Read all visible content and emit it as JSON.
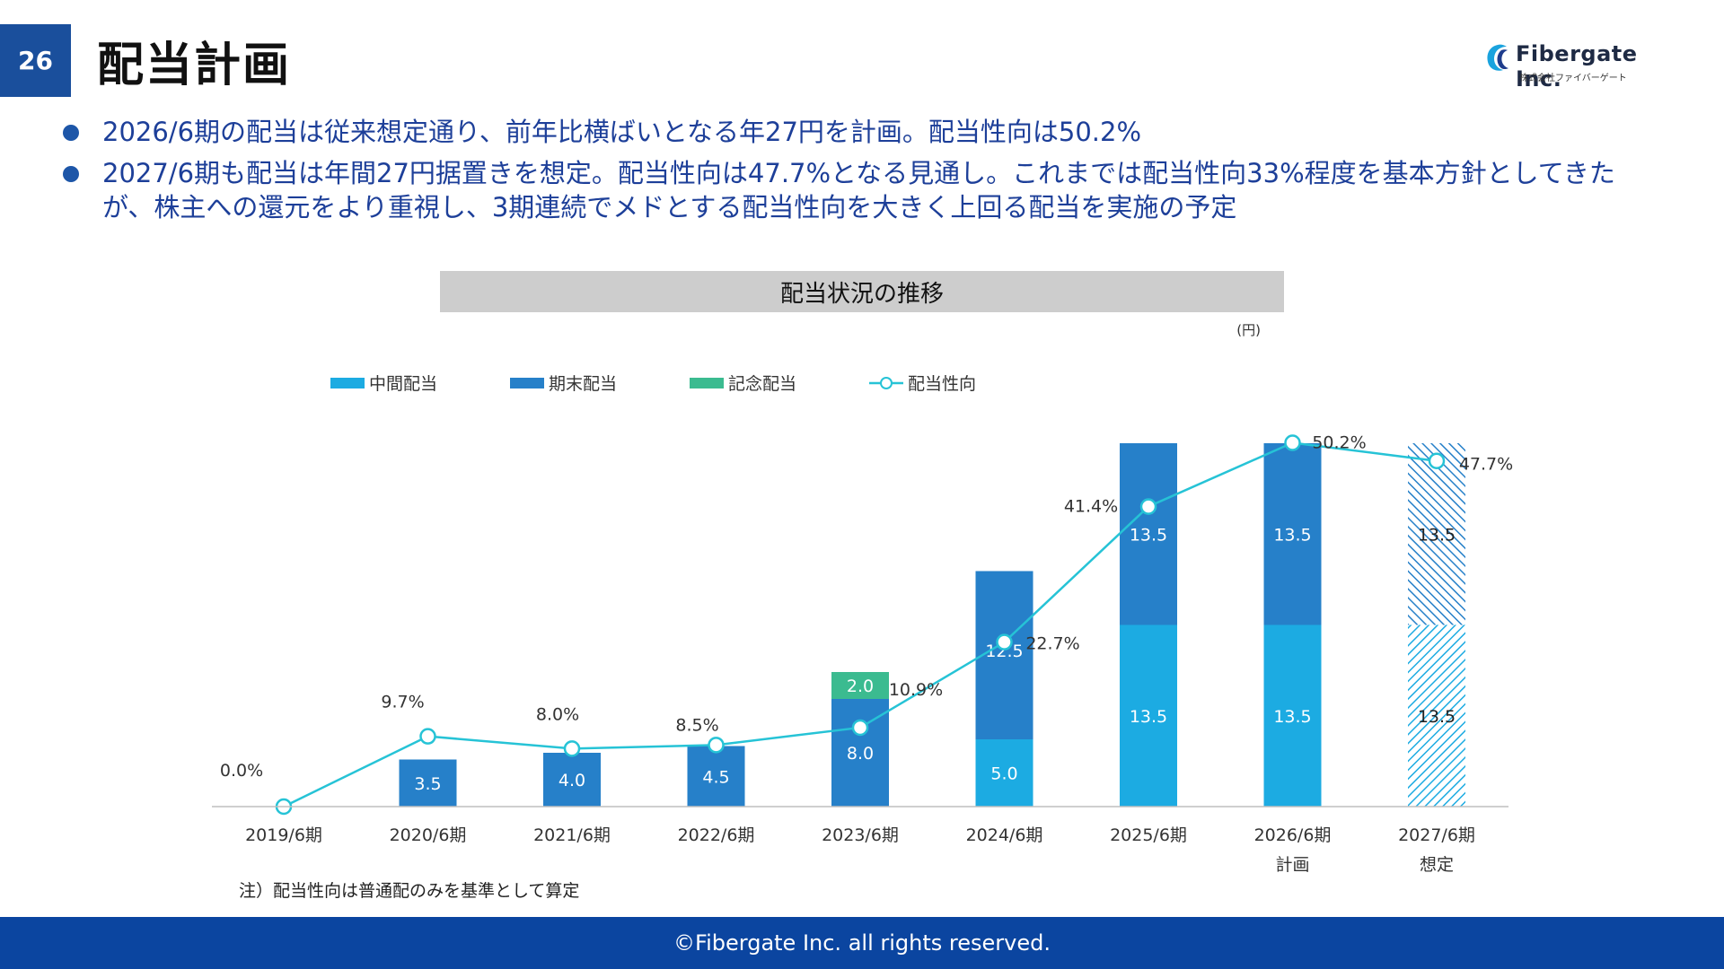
{
  "page": {
    "number": "26",
    "title": "配当計画",
    "logo_name": "Fibergate Inc.",
    "logo_sub": "株式会社ファイバーゲート",
    "bullets": [
      "2026/6期の配当は従来想定通り、前年比横ばいとなる年27円を計画。配当性向は50.2%",
      "2027/6期も配当は年間27円据置きを想定。配当性向は47.7%となる見通し。これまでは配当性向33%程度を基本方針としてきたが、株主への還元をより重視し、3期連続でメドとする配当性向を大きく上回る配当を実施の予定"
    ],
    "footer": "©Fibergate Inc. all rights reserved."
  },
  "chart_data": {
    "type": "bar",
    "title": "配当状況の推移",
    "unit": "(円)",
    "note": "注）配当性向は普通配のみを基準として算定",
    "categories": [
      "2019/6期",
      "2020/6期",
      "2021/6期",
      "2022/6期",
      "2023/6期",
      "2024/6期",
      "2025/6期",
      "2026/6期",
      "2027/6期"
    ],
    "category_sublabels": [
      "",
      "",
      "",
      "",
      "",
      "",
      "",
      "計画",
      "想定"
    ],
    "stacked": true,
    "ylim": [
      0,
      28
    ],
    "series": [
      {
        "name": "中間配当",
        "color": "#1cabe2",
        "values": [
          null,
          null,
          null,
          null,
          null,
          5.0,
          13.5,
          13.5,
          13.5
        ],
        "labels": [
          "",
          "",
          "",
          "",
          "",
          "5.0",
          "13.5",
          "13.5",
          "13.5"
        ]
      },
      {
        "name": "期末配当",
        "color": "#2680c9",
        "values": [
          null,
          3.5,
          4.0,
          4.5,
          8.0,
          12.5,
          13.5,
          13.5,
          13.5
        ],
        "labels": [
          "",
          "3.5",
          "4.0",
          "4.5",
          "8.0",
          "12.5",
          "13.5",
          "13.5",
          "13.5"
        ]
      },
      {
        "name": "記念配当",
        "color": "#3bbb90",
        "values": [
          null,
          null,
          null,
          null,
          2.0,
          null,
          null,
          null,
          null
        ],
        "labels": [
          "",
          "",
          "",
          "",
          "2.0",
          "",
          "",
          "",
          ""
        ]
      }
    ],
    "hatched_categories": [
      "2027/6期"
    ],
    "line_series": {
      "name": "配当性向",
      "color": "#26c3d6",
      "values": [
        0.0,
        9.7,
        8.0,
        8.5,
        10.9,
        22.7,
        41.4,
        50.2,
        47.7
      ],
      "labels": [
        "0.0%",
        "9.7%",
        "8.0%",
        "8.5%",
        "10.9%",
        "22.7%",
        "41.4%",
        "50.2%",
        "47.7%"
      ],
      "ylim": [
        0,
        52
      ]
    },
    "legend_placement": "top-left",
    "grid": false
  }
}
